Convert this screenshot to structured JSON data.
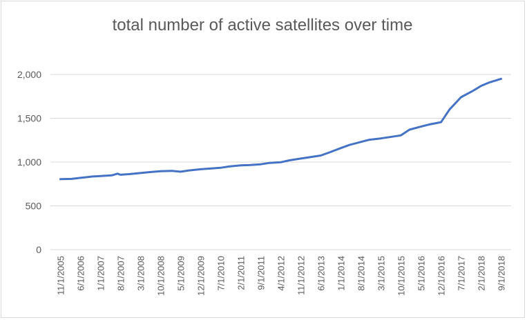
{
  "chart_data": {
    "type": "line",
    "title": "total number of active satellites over time",
    "xlabel": "",
    "ylabel": "",
    "ylim": [
      0,
      2000
    ],
    "yticks": [
      "0",
      "500",
      "1,000",
      "1,500",
      "2,000"
    ],
    "ytick_values": [
      0,
      500,
      1000,
      1500,
      2000
    ],
    "xticks": [
      "11/1/2005",
      "6/1/2006",
      "1/1/2007",
      "8/1/2007",
      "3/1/2008",
      "10/1/2008",
      "5/1/2009",
      "12/1/2009",
      "7/1/2010",
      "2/1/2011",
      "9/1/2011",
      "4/1/2012",
      "11/1/2012",
      "6/1/2013",
      "1/1/2014",
      "8/1/2014",
      "3/1/2015",
      "10/1/2015",
      "5/1/2016",
      "12/1/2016",
      "7/1/2017",
      "2/1/2018",
      "9/1/2018"
    ],
    "grid": true,
    "legend": "none",
    "colors": {
      "line": "#4472c4",
      "grid": "#d9d9d9",
      "text": "#595959"
    },
    "series": [
      {
        "x": [
          "11/1/2005",
          "3/1/2006",
          "6/1/2006",
          "10/1/2006",
          "1/1/2007",
          "5/1/2007",
          "7/1/2007",
          "8/1/2007",
          "11/1/2007",
          "3/1/2008",
          "6/1/2008",
          "10/1/2008",
          "2/1/2009",
          "5/1/2009",
          "8/1/2009",
          "12/1/2009",
          "3/1/2010",
          "7/1/2010",
          "10/1/2010",
          "2/1/2011",
          "5/1/2011",
          "9/1/2011",
          "12/1/2011",
          "4/1/2012",
          "7/1/2012",
          "11/1/2012",
          "2/1/2013",
          "6/1/2013",
          "9/1/2013",
          "1/1/2014",
          "4/1/2014",
          "8/1/2014",
          "11/1/2014",
          "3/1/2015",
          "6/1/2015",
          "10/1/2015",
          "1/1/2016",
          "5/1/2016",
          "8/1/2016",
          "12/1/2016",
          "3/1/2017",
          "7/1/2017",
          "11/1/2017",
          "2/1/2018",
          "5/1/2018",
          "9/1/2018"
        ],
        "values": [
          805,
          808,
          820,
          835,
          840,
          848,
          868,
          855,
          862,
          875,
          885,
          895,
          900,
          890,
          905,
          918,
          925,
          935,
          950,
          962,
          965,
          975,
          990,
          998,
          1020,
          1040,
          1055,
          1075,
          1110,
          1160,
          1195,
          1230,
          1255,
          1270,
          1285,
          1305,
          1370,
          1405,
          1430,
          1455,
          1600,
          1740,
          1810,
          1870,
          1910,
          1950
        ]
      }
    ]
  }
}
